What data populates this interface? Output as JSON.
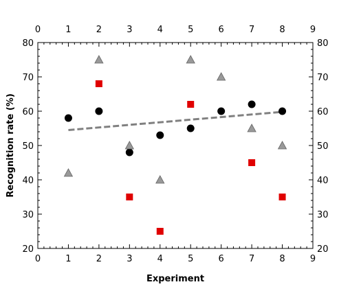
{
  "chart_data": {
    "type": "scatter",
    "title": "",
    "xlabel": "Experiment",
    "ylabel": "Recognition rate (%)",
    "xlim": [
      0,
      9
    ],
    "ylim": [
      20,
      80
    ],
    "x_ticks": [
      0,
      1,
      2,
      3,
      4,
      5,
      6,
      7,
      8,
      9
    ],
    "y_ticks": [
      20,
      30,
      40,
      50,
      60,
      70,
      80
    ],
    "grid": false,
    "legend": "none",
    "series": [
      {
        "marker": "circle",
        "color": "#000000",
        "x": [
          1,
          2,
          3,
          4,
          5,
          6,
          7,
          8
        ],
        "y": [
          58,
          60,
          48,
          53,
          55,
          60,
          62,
          60
        ]
      },
      {
        "marker": "square",
        "color": "#e00000",
        "x": [
          2,
          3,
          4,
          5,
          7,
          8
        ],
        "y": [
          68,
          35,
          25,
          62,
          45,
          35
        ]
      },
      {
        "marker": "triangle",
        "color": "#999999",
        "x": [
          1,
          2,
          3,
          4,
          5,
          6,
          7,
          8
        ],
        "y": [
          42,
          75,
          50,
          40,
          75,
          70,
          55,
          50
        ]
      }
    ],
    "trendline": {
      "style": "dashed",
      "color": "#808080",
      "x": [
        1,
        8
      ],
      "y": [
        54.5,
        59.8
      ]
    }
  }
}
